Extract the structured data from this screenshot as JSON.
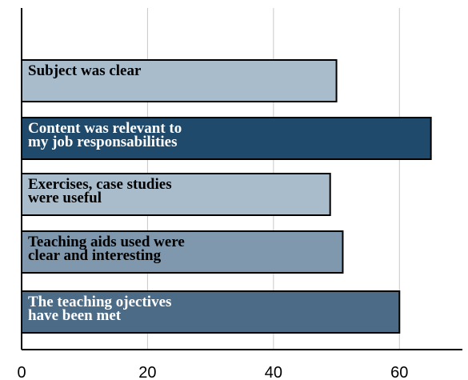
{
  "chart_data": {
    "type": "bar",
    "orientation": "horizontal",
    "categories": [
      "Subject was clear",
      "Content was relevant to\nmy job responsabilities",
      "Exercises, case studies\nwere useful",
      "Teaching aids used were\nclear and interesting",
      "The teaching ojectives\nhave been met"
    ],
    "values": [
      50,
      65,
      49,
      51,
      60
    ],
    "colors": [
      "#a9bccc",
      "#1f4a6b",
      "#a9bccc",
      "#7f98ad",
      "#4b6b87"
    ],
    "label_colors": [
      "#000000",
      "#ffffff",
      "#000000",
      "#000000",
      "#ffffff"
    ],
    "xlim": [
      0,
      70
    ],
    "xticks": [
      0,
      20,
      40,
      60
    ],
    "grid": true
  }
}
